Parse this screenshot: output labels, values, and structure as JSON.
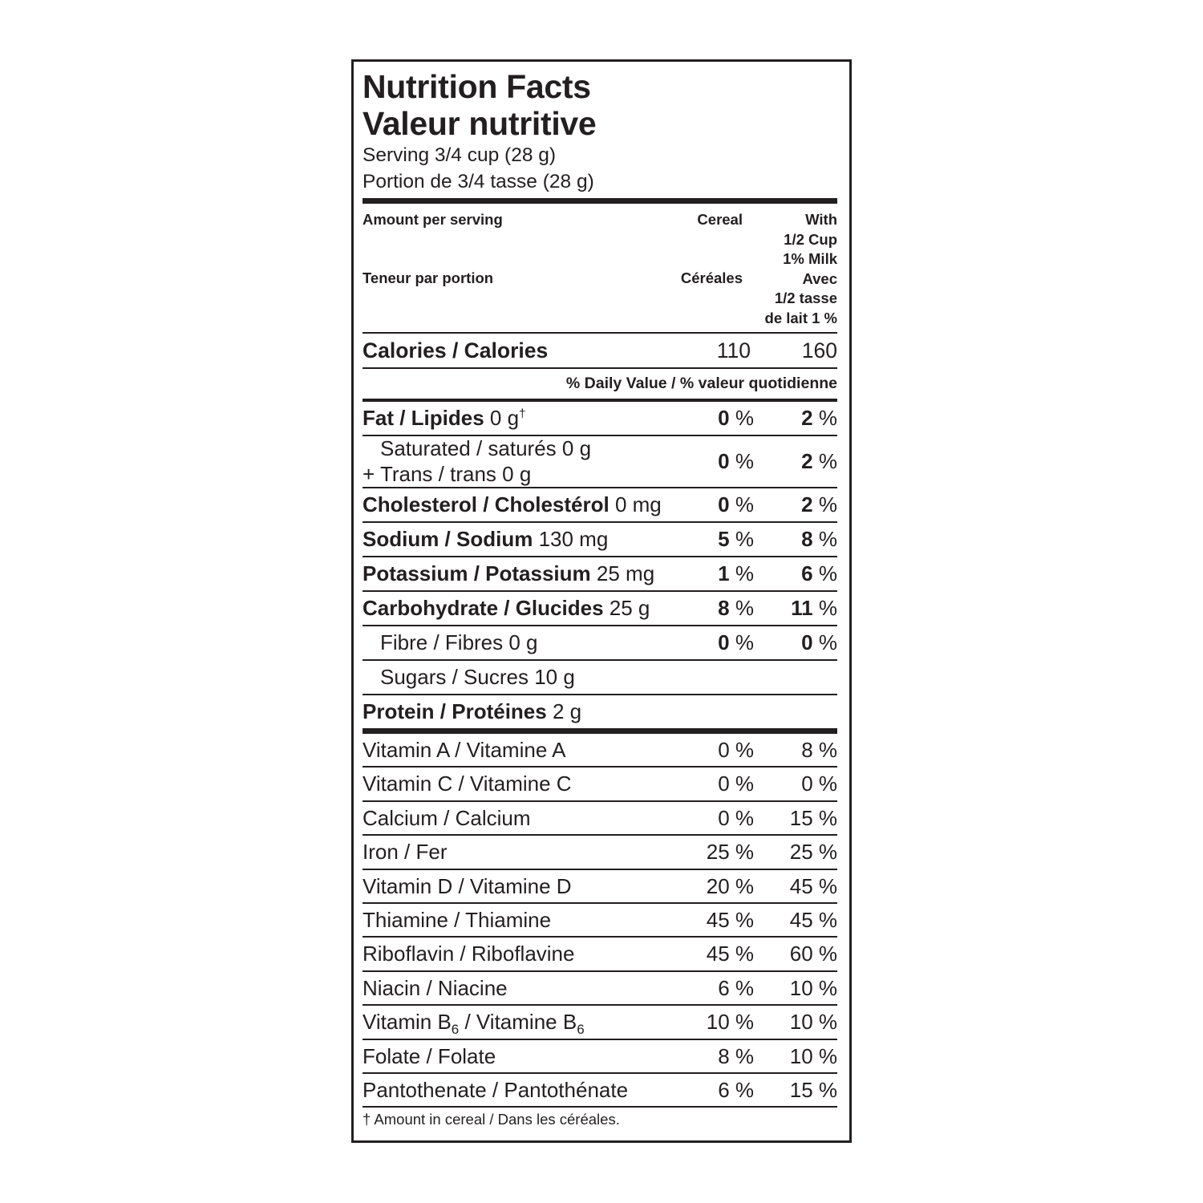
{
  "title_en": "Nutrition Facts",
  "title_fr": "Valeur nutritive",
  "serving_en": "Serving 3/4 cup (28 g)",
  "serving_fr": "Portion de 3/4 tasse (28 g)",
  "header": {
    "amount_en": "Amount per serving",
    "amount_fr": "Teneur par portion",
    "cereal_en": "Cereal",
    "cereal_fr": "Céréales",
    "milk": "With\n1/2 Cup\n1% Milk\nAvec\n1/2 tasse\nde lait 1 %"
  },
  "calories": {
    "label": "Calories / Calories",
    "cereal": "110",
    "milk": "160"
  },
  "daily_value_label": "% Daily Value / % valeur quotidienne",
  "nutrients": [
    {
      "name": "Fat / Lipides",
      "amount": "0 g",
      "mark": "†",
      "cereal": "0",
      "milk": "2",
      "bold": true
    },
    {
      "name": "Saturated / saturés 0 g",
      "name2": "+ Trans / trans 0 g",
      "cereal": "0",
      "milk": "2",
      "bold": false,
      "indent": true
    },
    {
      "name": "Cholesterol / Cholestérol",
      "amount": "0 mg",
      "cereal": "0",
      "milk": "2",
      "bold": true
    },
    {
      "name": "Sodium / Sodium",
      "amount": "130 mg",
      "cereal": "5",
      "milk": "8",
      "bold": true
    },
    {
      "name": "Potassium / Potassium",
      "amount": "25 mg",
      "cereal": "1",
      "milk": "6",
      "bold": true
    },
    {
      "name": "Carbohydrate / Glucides",
      "amount": "25 g",
      "cereal": "8",
      "milk": "11",
      "bold": true
    },
    {
      "name": "Fibre / Fibres 0 g",
      "cereal": "0",
      "milk": "0",
      "bold": false,
      "indent": true
    },
    {
      "name": "Sugars / Sucres 10 g",
      "bold": false,
      "indent": true
    },
    {
      "name": "Protein / Protéines",
      "amount": "2 g",
      "bold": true
    }
  ],
  "percent_sign": "%",
  "vitamins": [
    {
      "name": "Vitamin A / Vitamine A",
      "cereal": "0 %",
      "milk": "8 %"
    },
    {
      "name": "Vitamin C / Vitamine C",
      "cereal": "0 %",
      "milk": "0 %"
    },
    {
      "name": "Calcium / Calcium",
      "cereal": "0 %",
      "milk": "15 %"
    },
    {
      "name": "Iron / Fer",
      "cereal": "25 %",
      "milk": "25 %"
    },
    {
      "name": "Vitamin D / Vitamine D",
      "cereal": "20 %",
      "milk": "45 %"
    },
    {
      "name": "Thiamine / Thiamine",
      "cereal": "45 %",
      "milk": "45 %"
    },
    {
      "name": "Riboflavin / Riboflavine",
      "cereal": "45 %",
      "milk": "60 %"
    },
    {
      "name": "Niacin / Niacine",
      "cereal": "6 %",
      "milk": "10 %"
    },
    {
      "name": "Vitamin B",
      "sub": "6",
      "name_b": " / Vitamine B",
      "sub_b": "6",
      "cereal": "10 %",
      "milk": "10 %"
    },
    {
      "name": "Folate / Folate",
      "cereal": "8 %",
      "milk": "10 %"
    },
    {
      "name": "Pantothenate / Pantothénate",
      "cereal": "6 %",
      "milk": "15 %"
    }
  ],
  "footnote": "† Amount in cereal / Dans les céréales."
}
